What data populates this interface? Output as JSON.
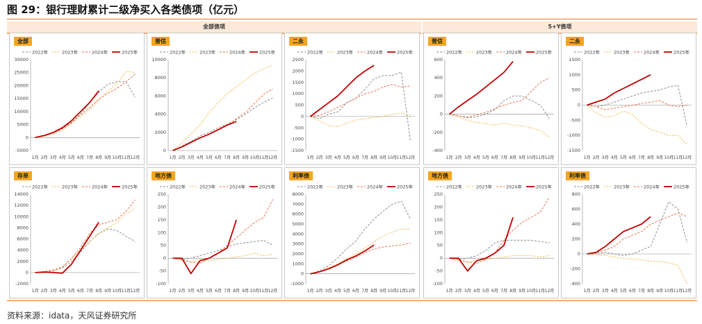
{
  "title": "图 29：银行理财累计二级净买入各类债项（亿元）",
  "group_headers": {
    "all": "全部债项",
    "five_y": "5+Y债项"
  },
  "source": "资料来源：idata，天风证券研究所",
  "legend": [
    "2022年",
    "2023年",
    "2024年",
    "2025年"
  ],
  "series_colors": [
    "#8c8c8c",
    "#f5b63f",
    "#e8734d",
    "#c00000"
  ],
  "months": [
    "1月",
    "2月",
    "3月",
    "4月",
    "5月",
    "6月",
    "7月",
    "8月",
    "9月",
    "10月",
    "11月",
    "12月"
  ],
  "chart_data": [
    {
      "type": "line",
      "title": "全部",
      "yticks": [
        -5000,
        0,
        5000,
        10000,
        15000,
        20000,
        25000,
        30000
      ],
      "ylim": [
        -5000,
        30000
      ],
      "series": [
        {
          "name": "2022年",
          "values": [
            0,
            600,
            1800,
            3600,
            5800,
            9000,
            13500,
            17500,
            20500,
            21500,
            21500,
            15500
          ]
        },
        {
          "name": "2023年",
          "values": [
            0,
            500,
            1400,
            3000,
            5300,
            8000,
            10800,
            14500,
            17800,
            20800,
            25500,
            25000
          ]
        },
        {
          "name": "2024年",
          "values": [
            0,
            700,
            1700,
            3400,
            5600,
            8800,
            11500,
            14800,
            17000,
            19000,
            21500,
            24500
          ]
        },
        {
          "name": "2025年",
          "values": [
            0,
            800,
            2000,
            3800,
            6500,
            10000,
            13500,
            18000
          ]
        }
      ]
    },
    {
      "type": "line",
      "title": "普信",
      "yticks": [
        0,
        2000,
        4000,
        6000,
        8000,
        10000
      ],
      "ylim": [
        0,
        10000
      ],
      "series": [
        {
          "name": "2022年",
          "values": [
            0,
            500,
            1000,
            1600,
            2000,
            2500,
            2900,
            3400,
            4000,
            4700,
            5300,
            5800
          ]
        },
        {
          "name": "2023年",
          "values": [
            0,
            800,
            1800,
            2800,
            4200,
            5300,
            6300,
            7000,
            7800,
            8500,
            9000,
            9400
          ]
        },
        {
          "name": "2024年",
          "values": [
            0,
            400,
            900,
            1400,
            1800,
            2300,
            2800,
            3500,
            4200,
            5200,
            6200,
            6800
          ]
        },
        {
          "name": "2025年",
          "values": [
            0,
            400,
            900,
            1400,
            1800,
            2300,
            2800,
            3200
          ]
        }
      ]
    },
    {
      "type": "line",
      "title": "二永",
      "yticks": [
        -1500,
        -1000,
        -500,
        0,
        500,
        1000,
        1500,
        2000,
        2500
      ],
      "ylim": [
        -1500,
        2500
      ],
      "series": [
        {
          "name": "2022年",
          "values": [
            0,
            -100,
            100,
            200,
            600,
            800,
            1200,
            1650,
            1800,
            1800,
            1950,
            -1100
          ]
        },
        {
          "name": "2023年",
          "values": [
            0,
            -200,
            -400,
            -450,
            -300,
            -150,
            -100,
            -50,
            0,
            100,
            150,
            50
          ]
        },
        {
          "name": "2024年",
          "values": [
            0,
            50,
            200,
            400,
            600,
            800,
            1000,
            1100,
            1300,
            1400,
            1300,
            1350
          ]
        },
        {
          "name": "2025年",
          "values": [
            0,
            300,
            600,
            900,
            1300,
            1700,
            2000,
            2250
          ]
        }
      ]
    },
    {
      "type": "line",
      "title": "普信",
      "yticks": [
        -400,
        -200,
        0,
        200,
        400,
        600
      ],
      "ylim": [
        -400,
        600
      ],
      "series": [
        {
          "name": "2022年",
          "values": [
            0,
            -20,
            -40,
            -30,
            0,
            50,
            150,
            200,
            200,
            150,
            100,
            -50
          ]
        },
        {
          "name": "2023年",
          "values": [
            0,
            -30,
            -70,
            -90,
            -100,
            -120,
            -100,
            -120,
            -130,
            -150,
            -180,
            -250
          ]
        },
        {
          "name": "2024年",
          "values": [
            0,
            -20,
            -30,
            -10,
            20,
            60,
            100,
            130,
            150,
            250,
            350,
            400
          ]
        },
        {
          "name": "2025年",
          "values": [
            0,
            80,
            150,
            220,
            300,
            380,
            460,
            580
          ]
        }
      ]
    },
    {
      "type": "line",
      "title": "二永",
      "yticks": [
        -1500,
        -1000,
        -500,
        0,
        500,
        1000,
        1500
      ],
      "ylim": [
        -1500,
        1500
      ],
      "series": [
        {
          "name": "2022年",
          "values": [
            0,
            -50,
            0,
            100,
            200,
            300,
            400,
            450,
            500,
            600,
            650,
            -700
          ]
        },
        {
          "name": "2023年",
          "values": [
            0,
            -250,
            -400,
            -350,
            -200,
            -300,
            -600,
            -800,
            -900,
            -1000,
            -1000,
            -1300
          ]
        },
        {
          "name": "2024年",
          "values": [
            0,
            -50,
            -150,
            -100,
            -50,
            0,
            50,
            100,
            150,
            0,
            -50,
            0
          ]
        },
        {
          "name": "2025年",
          "values": [
            0,
            100,
            200,
            400,
            550,
            700,
            850,
            1000
          ]
        }
      ]
    },
    {
      "type": "line",
      "title": "存单",
      "yticks": [
        -2000,
        0,
        2000,
        4000,
        6000,
        8000,
        10000,
        12000,
        14000
      ],
      "ylim": [
        -2000,
        14000
      ],
      "series": [
        {
          "name": "2022年",
          "values": [
            0,
            100,
            300,
            800,
            2000,
            3700,
            5500,
            7000,
            7800,
            7500,
            6500,
            5500
          ]
        },
        {
          "name": "2023年",
          "values": [
            0,
            -100,
            200,
            1000,
            2500,
            4000,
            5500,
            7000,
            8000,
            9000,
            10500,
            11500
          ]
        },
        {
          "name": "2024年",
          "values": [
            0,
            200,
            500,
            1000,
            2500,
            4500,
            7000,
            8500,
            9000,
            9500,
            11000,
            13000
          ]
        },
        {
          "name": "2025年",
          "values": [
            0,
            100,
            0,
            -100,
            1500,
            4000,
            6500,
            9000
          ]
        }
      ]
    },
    {
      "type": "line",
      "title": "地方债",
      "yticks": [
        -100,
        -50,
        0,
        50,
        100,
        150,
        200,
        250
      ],
      "ylim": [
        -100,
        250
      ],
      "series": [
        {
          "name": "2022年",
          "values": [
            0,
            -5,
            0,
            10,
            20,
            30,
            45,
            55,
            60,
            65,
            70,
            50
          ]
        },
        {
          "name": "2023年",
          "values": [
            0,
            -10,
            -15,
            -5,
            -10,
            -5,
            0,
            5,
            10,
            20,
            10,
            15
          ]
        },
        {
          "name": "2024年",
          "values": [
            0,
            -5,
            -15,
            -20,
            0,
            20,
            50,
            80,
            110,
            140,
            160,
            230
          ]
        },
        {
          "name": "2025年",
          "values": [
            0,
            0,
            -60,
            -10,
            0,
            20,
            40,
            150
          ]
        }
      ]
    },
    {
      "type": "line",
      "title": "利率债",
      "yticks": [
        -1000,
        0,
        1000,
        2000,
        3000,
        4000,
        5000,
        6000,
        7000,
        8000
      ],
      "ylim": [
        -1000,
        8000
      ],
      "series": [
        {
          "name": "2022年",
          "values": [
            0,
            300,
            800,
            1600,
            2500,
            3300,
            4500,
            5500,
            6300,
            7000,
            7300,
            5500
          ]
        },
        {
          "name": "2023年",
          "values": [
            0,
            200,
            600,
            1000,
            1500,
            2000,
            2600,
            3200,
            3800,
            4200,
            4500,
            4500
          ]
        },
        {
          "name": "2024年",
          "values": [
            0,
            200,
            500,
            900,
            1300,
            1700,
            2100,
            2500,
            2700,
            2800,
            2900,
            3100
          ]
        },
        {
          "name": "2025年",
          "values": [
            0,
            200,
            500,
            900,
            1400,
            1800,
            2300,
            2900
          ]
        }
      ]
    },
    {
      "type": "line",
      "title": "地方债",
      "yticks": [
        -100,
        -50,
        0,
        50,
        100,
        150,
        200,
        250
      ],
      "ylim": [
        -100,
        250
      ],
      "series": [
        {
          "name": "2022年",
          "values": [
            0,
            -5,
            0,
            10,
            30,
            60,
            70,
            70,
            70,
            70,
            65,
            60
          ]
        },
        {
          "name": "2023年",
          "values": [
            0,
            -10,
            -15,
            -10,
            -5,
            0,
            5,
            10,
            10,
            10,
            5,
            10
          ]
        },
        {
          "name": "2024年",
          "values": [
            0,
            -5,
            -15,
            -20,
            -5,
            20,
            70,
            110,
            140,
            160,
            180,
            240
          ]
        },
        {
          "name": "2025年",
          "values": [
            0,
            0,
            -50,
            -10,
            0,
            20,
            50,
            160
          ]
        }
      ]
    },
    {
      "type": "line",
      "title": "利率债",
      "yticks": [
        -400,
        -200,
        0,
        200,
        400,
        600,
        800
      ],
      "ylim": [
        -400,
        800
      ],
      "series": [
        {
          "name": "2022年",
          "values": [
            0,
            10,
            20,
            0,
            -20,
            0,
            50,
            100,
            400,
            700,
            600,
            150
          ]
        },
        {
          "name": "2023年",
          "values": [
            0,
            -10,
            -20,
            -40,
            -60,
            -70,
            -80,
            -100,
            -100,
            -120,
            -150,
            -400
          ]
        },
        {
          "name": "2024年",
          "values": [
            0,
            20,
            50,
            100,
            200,
            250,
            300,
            400,
            450,
            500,
            550,
            500
          ]
        },
        {
          "name": "2025年",
          "values": [
            0,
            20,
            100,
            200,
            300,
            350,
            400,
            500
          ]
        }
      ]
    }
  ]
}
